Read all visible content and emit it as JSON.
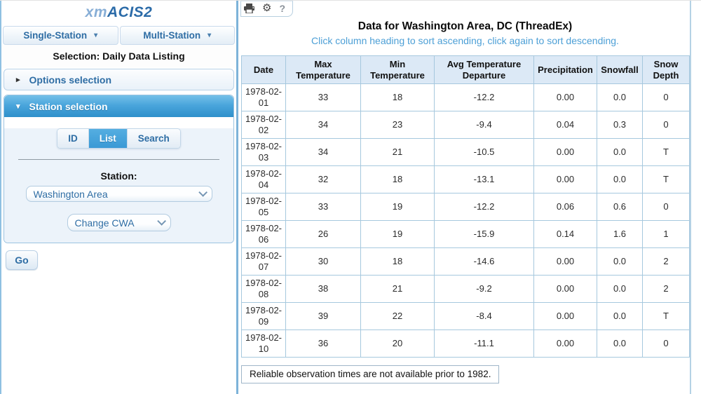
{
  "sidebar": {
    "logo": {
      "prefix": "xm",
      "suffix": "ACIS2"
    },
    "nav": {
      "single_station": "Single-Station",
      "multi_station": "Multi-Station",
      "caret_glyph": "▾"
    },
    "selection_label": "Selection: Daily Data Listing",
    "options_section": {
      "label": "Options selection",
      "arrow_glyph": "▸"
    },
    "station_section": {
      "label": "Station selection",
      "arrow_glyph": "▾"
    },
    "tabs": [
      {
        "label": "ID"
      },
      {
        "label": "List"
      },
      {
        "label": "Search"
      }
    ],
    "active_tab": "List",
    "station_label": "Station:",
    "station_select_value": "Washington Area",
    "cwa_select_value": "Change CWA",
    "go_button": "Go"
  },
  "main": {
    "toolbar": {
      "icons": [
        {
          "name": "printer-icon"
        },
        {
          "name": "gear-icon",
          "glyph": "⚙"
        },
        {
          "name": "help-icon",
          "glyph": "?"
        }
      ]
    },
    "title": "Data for Washington Area, DC (ThreadEx)",
    "subtitle": "Click column heading to sort ascending, click again to sort descending.",
    "table": {
      "columns": [
        "Date",
        "Max Temperature",
        "Min Temperature",
        "Avg Temperature Departure",
        "Precipitation",
        "Snowfall",
        "Snow Depth"
      ],
      "rows": [
        [
          "1978-02-01",
          "33",
          "18",
          "-12.2",
          "0.00",
          "0.0",
          "0"
        ],
        [
          "1978-02-02",
          "34",
          "23",
          "-9.4",
          "0.04",
          "0.3",
          "0"
        ],
        [
          "1978-02-03",
          "34",
          "21",
          "-10.5",
          "0.00",
          "0.0",
          "T"
        ],
        [
          "1978-02-04",
          "32",
          "18",
          "-13.1",
          "0.00",
          "0.0",
          "T"
        ],
        [
          "1978-02-05",
          "33",
          "19",
          "-12.2",
          "0.06",
          "0.6",
          "0"
        ],
        [
          "1978-02-06",
          "26",
          "19",
          "-15.9",
          "0.14",
          "1.6",
          "1"
        ],
        [
          "1978-02-07",
          "30",
          "18",
          "-14.6",
          "0.00",
          "0.0",
          "2"
        ],
        [
          "1978-02-08",
          "38",
          "21",
          "-9.2",
          "0.00",
          "0.0",
          "2"
        ],
        [
          "1978-02-09",
          "39",
          "22",
          "-8.4",
          "0.00",
          "0.0",
          "T"
        ],
        [
          "1978-02-10",
          "36",
          "20",
          "-11.1",
          "0.00",
          "0.0",
          "0"
        ]
      ]
    },
    "footer_note": "Reliable observation times are not available prior to 1982."
  },
  "colors": {
    "accent_blue_text": "#2e6da4",
    "subtitle_blue": "#4c9fd6",
    "station_header_gradient_top": "#74c0e8",
    "station_header_gradient_bottom": "#2f90cb",
    "active_tab_blue": "#3a99d5",
    "table_border": "#a6c8de",
    "table_header_bg": "#dce9f6"
  }
}
